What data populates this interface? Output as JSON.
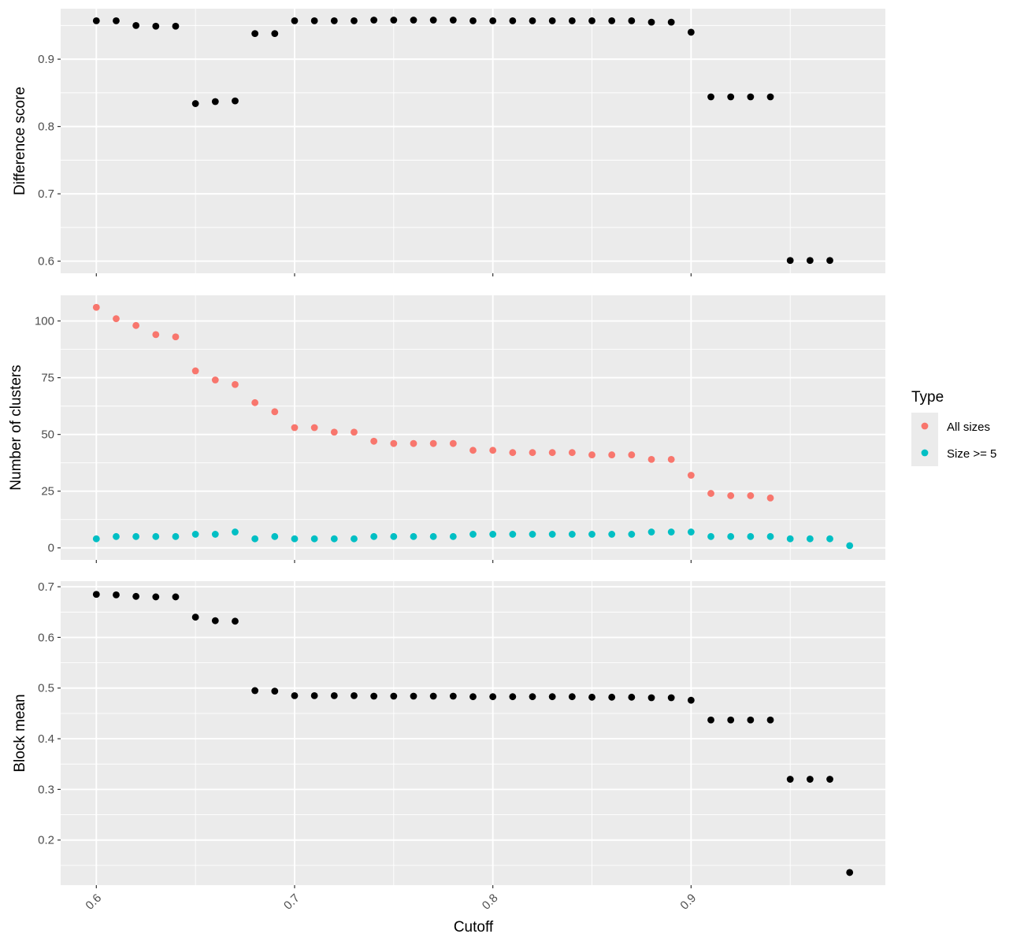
{
  "chart_data": {
    "type": "scatter",
    "x_label": "Cutoff",
    "x_range": [
      0.582,
      0.998
    ],
    "x_ticks": [
      0.6,
      0.7,
      0.8,
      0.9
    ],
    "x_tick_labels": [
      "0.6",
      "0.7",
      "0.8",
      "0.9"
    ],
    "x_values": [
      0.6,
      0.61,
      0.62,
      0.63,
      0.64,
      0.65,
      0.66,
      0.67,
      0.68,
      0.69,
      0.7,
      0.71,
      0.72,
      0.73,
      0.74,
      0.75,
      0.76,
      0.77,
      0.78,
      0.79,
      0.8,
      0.81,
      0.82,
      0.83,
      0.84,
      0.85,
      0.86,
      0.87,
      0.88,
      0.89,
      0.9,
      0.91,
      0.92,
      0.93,
      0.94,
      0.95,
      0.96,
      0.97,
      0.98
    ],
    "panels": [
      {
        "ylabel": "Difference score",
        "ylim": [
          0.582,
          0.975
        ],
        "yticks": [
          0.6,
          0.7,
          0.8,
          0.9
        ],
        "ytick_labels": [
          "0.6",
          "0.7",
          "0.8",
          "0.9"
        ],
        "series": [
          {
            "color": "#000000",
            "values": [
              0.957,
              0.957,
              0.95,
              0.949,
              0.949,
              0.834,
              0.837,
              0.838,
              0.938,
              0.938,
              0.957,
              0.957,
              0.957,
              0.957,
              0.958,
              0.958,
              0.958,
              0.958,
              0.958,
              0.957,
              0.957,
              0.957,
              0.957,
              0.957,
              0.957,
              0.957,
              0.957,
              0.957,
              0.955,
              0.955,
              0.94,
              0.844,
              0.844,
              0.844,
              0.844,
              0.601,
              0.601,
              0.601,
              null
            ]
          }
        ]
      },
      {
        "ylabel": "Number of clusters",
        "ylim": [
          -5.3,
          111.3
        ],
        "yticks": [
          0,
          25,
          50,
          75,
          100
        ],
        "ytick_labels": [
          "0",
          "25",
          "50",
          "75",
          "100"
        ],
        "series": [
          {
            "name": "All sizes",
            "color": "#F8766D",
            "values": [
              106,
              101,
              98,
              94,
              93,
              78,
              74,
              72,
              64,
              60,
              53,
              53,
              51,
              51,
              47,
              46,
              46,
              46,
              46,
              43,
              43,
              42,
              42,
              42,
              42,
              41,
              41,
              41,
              39,
              39,
              32,
              24,
              23,
              23,
              22,
              null,
              null,
              null,
              null
            ]
          },
          {
            "name": "Size >= 5",
            "color": "#00BFC4",
            "values": [
              4,
              5,
              5,
              5,
              5,
              6,
              6,
              7,
              4,
              5,
              4,
              4,
              4,
              4,
              5,
              5,
              5,
              5,
              5,
              6,
              6,
              6,
              6,
              6,
              6,
              6,
              6,
              6,
              7,
              7,
              7,
              5,
              5,
              5,
              5,
              4,
              4,
              4,
              1
            ]
          }
        ]
      },
      {
        "ylabel": "Block mean",
        "ylim": [
          0.111,
          0.711
        ],
        "yticks": [
          0.2,
          0.3,
          0.4,
          0.5,
          0.6,
          0.7
        ],
        "ytick_labels": [
          "0.2",
          "0.3",
          "0.4",
          "0.5",
          "0.6",
          "0.7"
        ],
        "series": [
          {
            "color": "#000000",
            "values": [
              0.685,
              0.684,
              0.681,
              0.68,
              0.68,
              0.64,
              0.633,
              0.632,
              0.495,
              0.494,
              0.485,
              0.485,
              0.485,
              0.485,
              0.484,
              0.484,
              0.484,
              0.484,
              0.484,
              0.483,
              0.483,
              0.483,
              0.483,
              0.483,
              0.483,
              0.482,
              0.482,
              0.482,
              0.481,
              0.481,
              0.476,
              0.437,
              0.437,
              0.437,
              0.437,
              0.32,
              0.32,
              0.32,
              0.136
            ]
          }
        ]
      }
    ],
    "legend": {
      "title": "Type",
      "position": "right",
      "entries": [
        {
          "label": "All sizes",
          "color": "#F8766D"
        },
        {
          "label": "Size >= 5",
          "color": "#00BFC4"
        }
      ]
    },
    "grid": true,
    "panel_background": "#EBEBEB",
    "grid_color": "#FFFFFF"
  }
}
